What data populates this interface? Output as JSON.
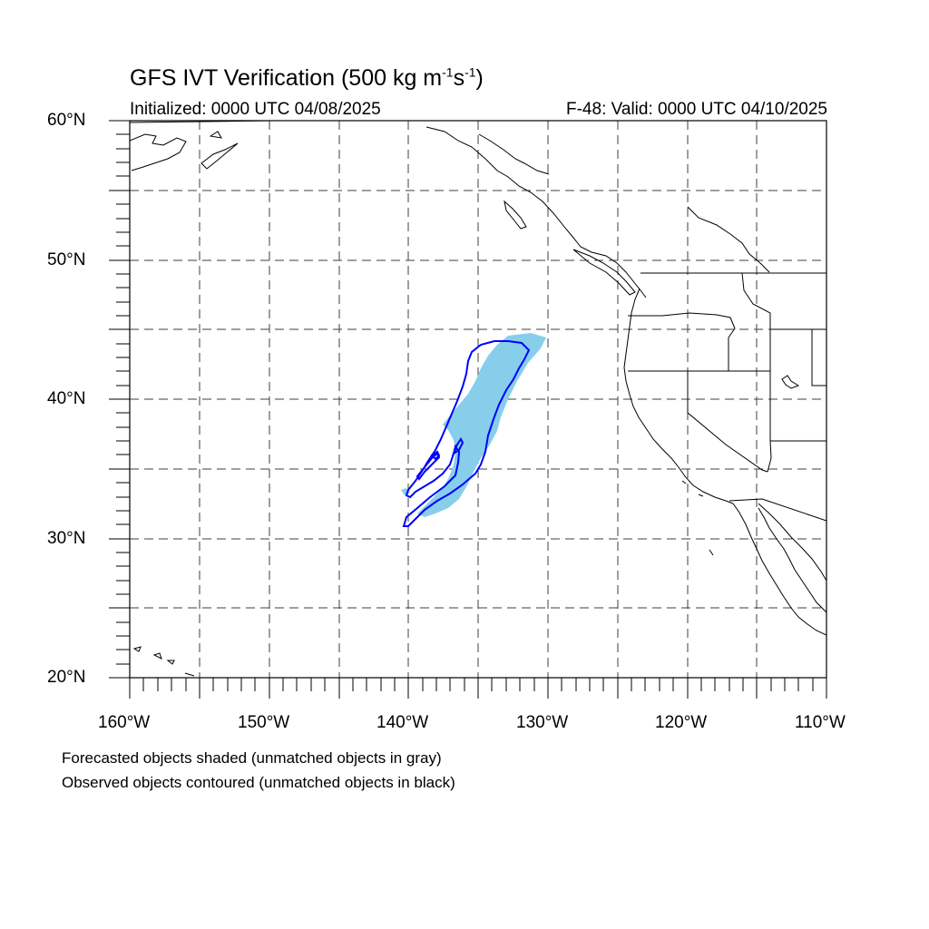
{
  "title": {
    "main": "GFS IVT Verification (500 kg m",
    "sup1": "-1",
    "mid": "s",
    "sup2": "-1",
    "end": ")"
  },
  "initialized": "Initialized: 0000 UTC 04/08/2025",
  "valid": "F-48: Valid: 0000 UTC 04/10/2025",
  "lat_labels": [
    "60°N",
    "50°N",
    "40°N",
    "30°N",
    "20°N"
  ],
  "lon_labels": [
    "160°W",
    "150°W",
    "140°W",
    "130°W",
    "120°W",
    "110°W"
  ],
  "notes": [
    "Forecasted objects shaded (unmatched objects in gray)",
    "Observed objects contoured (unmatched objects in black)"
  ],
  "colors": {
    "forecast_fill": "#87ceeb",
    "observed_contour": "#0000ff",
    "coastline": "#000000",
    "grid": "#000000"
  },
  "map": {
    "lon_range": [
      -160,
      -110
    ],
    "lat_range": [
      20,
      60
    ],
    "gridlines": "dashed, every 5 degrees"
  }
}
